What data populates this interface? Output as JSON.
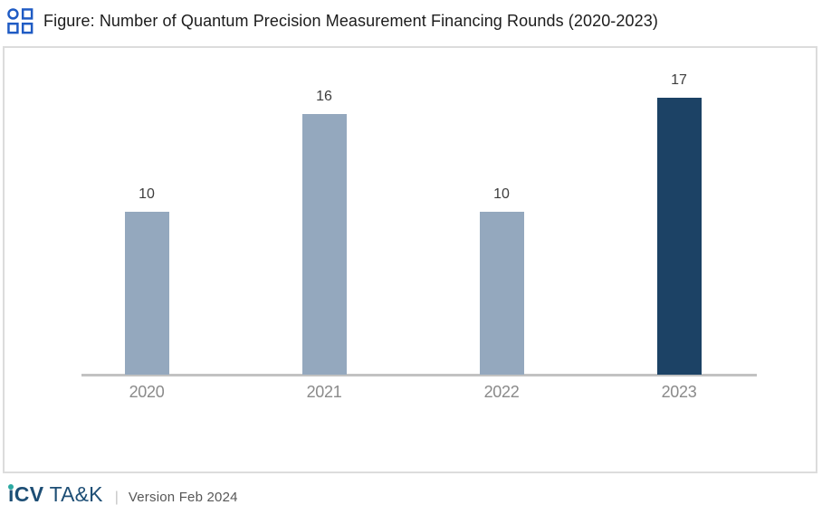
{
  "header": {
    "title": "Figure: Number of Quantum Precision Measurement Financing Rounds (2020-2023)",
    "icon": "grid-logo-icon"
  },
  "chart_data": {
    "type": "bar",
    "title": "Number of Quantum Precision Measurement Financing Rounds (2020-2023)",
    "categories": [
      "2020",
      "2021",
      "2022",
      "2023"
    ],
    "values": [
      10,
      16,
      10,
      17
    ],
    "data_labels_shown": true,
    "series_colors": [
      "#94a8be",
      "#94a8be",
      "#94a8be",
      "#1c4265"
    ],
    "highlight_category": "2023",
    "xlabel": "",
    "ylabel": "",
    "ylim": [
      0,
      18
    ],
    "y_axis_visible": false,
    "grid": false,
    "legend": "none"
  },
  "colors": {
    "header_icon_blue": "#1f5bc4",
    "bar_default": "#94a8be",
    "bar_highlight": "#1c4265",
    "axis_line": "#c2c2c2",
    "panel_border": "#dcdcdc",
    "brand_navy": "#1d4e75",
    "brand_teal_dot": "#2ca9a2",
    "value_label": "#3d3d3d",
    "x_label": "#8a8a8a"
  },
  "footer": {
    "brand_i": "i",
    "brand_cv": "CV",
    "brand_tak": "TA&K",
    "separator": "|",
    "version": "Version Feb 2024"
  }
}
